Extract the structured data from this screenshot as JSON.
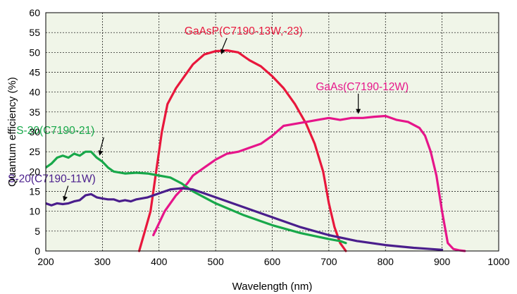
{
  "chart_data": {
    "type": "line",
    "title": "",
    "xlabel": "Wavelength (nm)",
    "ylabel": "Quantum efficiency (%)",
    "xlim": [
      200,
      1000
    ],
    "ylim": [
      0,
      60
    ],
    "xticks": [
      200,
      300,
      400,
      500,
      600,
      700,
      800,
      900,
      1000
    ],
    "yticks": [
      0,
      5,
      10,
      15,
      20,
      25,
      30,
      35,
      40,
      45,
      50,
      55,
      60
    ],
    "grid": true,
    "plot_background": "#f0f5e8",
    "series": [
      {
        "name": "GaAsP(C7190-13W,-23)",
        "color": "#e8173c",
        "x": [
          365,
          375,
          385,
          395,
          405,
          415,
          430,
          445,
          460,
          480,
          500,
          520,
          540,
          550,
          560,
          580,
          600,
          620,
          640,
          660,
          675,
          690,
          700,
          710,
          720,
          730
        ],
        "y": [
          0,
          5,
          10,
          20,
          30,
          37,
          41,
          44,
          47,
          49.5,
          50.3,
          50.5,
          50,
          49,
          48,
          46.5,
          44,
          41,
          37,
          32,
          27,
          20,
          12,
          6,
          2,
          0
        ]
      },
      {
        "name": "GaAs(C7190-12W)",
        "color": "#e6158a",
        "x": [
          390,
          400,
          410,
          420,
          430,
          440,
          450,
          460,
          480,
          500,
          520,
          540,
          560,
          580,
          600,
          620,
          640,
          660,
          680,
          700,
          720,
          740,
          760,
          780,
          800,
          820,
          840,
          860,
          870,
          880,
          890,
          900,
          910,
          920,
          930,
          940
        ],
        "y": [
          4,
          7,
          10,
          12,
          14,
          15.5,
          17,
          19,
          21,
          23,
          24.5,
          25,
          26,
          27,
          29,
          31.5,
          32,
          32.5,
          33,
          33.5,
          33,
          33.5,
          33.5,
          33.8,
          34,
          33,
          32.5,
          31,
          29,
          25,
          19,
          10,
          2,
          0.5,
          0.2,
          0
        ]
      },
      {
        "name": "S-20(C7190-21)",
        "color": "#18a84a",
        "x": [
          200,
          210,
          220,
          230,
          240,
          250,
          260,
          270,
          280,
          290,
          300,
          310,
          320,
          340,
          360,
          380,
          400,
          420,
          440,
          460,
          480,
          500,
          550,
          600,
          650,
          700,
          720,
          730
        ],
        "y": [
          21,
          22,
          23.5,
          24,
          23.5,
          24.5,
          24,
          25,
          25,
          23.5,
          22.5,
          21,
          20,
          19.5,
          19.7,
          19.5,
          19,
          18.5,
          17,
          15,
          13.5,
          12,
          9,
          6.5,
          4.5,
          3,
          2.5,
          2
        ]
      },
      {
        "name": "S-20(C7190-11W)",
        "color": "#4a1e8c",
        "x": [
          200,
          210,
          220,
          230,
          240,
          250,
          260,
          270,
          280,
          290,
          300,
          310,
          320,
          330,
          340,
          350,
          360,
          380,
          400,
          420,
          440,
          460,
          480,
          500,
          550,
          600,
          650,
          700,
          750,
          800,
          850,
          880,
          900
        ],
        "y": [
          12,
          11.5,
          12,
          11.8,
          12,
          12.5,
          12.8,
          14,
          14.3,
          13.5,
          13.2,
          13,
          13,
          12.5,
          12.8,
          12.5,
          13,
          13.5,
          14.5,
          15.5,
          15.8,
          15.5,
          14.5,
          13.5,
          11,
          8.5,
          6,
          4,
          2.5,
          1.5,
          0.8,
          0.5,
          0.3
        ]
      }
    ],
    "annotations": [
      {
        "text": "GaAsP(C7190-13W,-23)",
        "series": 0,
        "color": "#e8173c",
        "label_x": 445,
        "label_y": 54.5,
        "arrow_to": [
          510,
          49.5
        ]
      },
      {
        "text": "GaAs(C7190-12W)",
        "series": 1,
        "color": "#e6158a",
        "label_x": 677,
        "label_y": 40.5,
        "arrow_to": [
          752,
          34.5
        ]
      },
      {
        "text": "S-20(C7190-21)",
        "series": 2,
        "color": "#18a84a",
        "label_x": 148,
        "label_y": 29.5,
        "arrow_to": [
          295,
          24
        ]
      },
      {
        "text": "S-20(C7190-11W)",
        "series": 3,
        "color": "#4a1e8c",
        "label_x": 133,
        "label_y": 17.3,
        "arrow_to": [
          232,
          12.5
        ]
      }
    ]
  }
}
